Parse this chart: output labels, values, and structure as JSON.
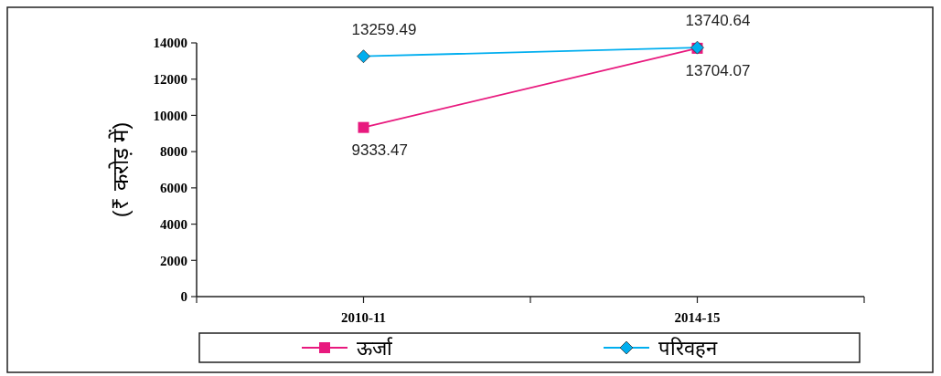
{
  "chart_data": {
    "type": "line",
    "categories": [
      "2010-11",
      "2014-15"
    ],
    "ylabel": "(₹ करोड़ में)",
    "ylim": [
      0,
      14000
    ],
    "yticks": [
      0,
      2000,
      4000,
      6000,
      8000,
      10000,
      12000,
      14000
    ],
    "grid": false,
    "legend": "bottom",
    "data_labels": true,
    "series": [
      {
        "name": "ऊर्जा",
        "color": "#e8197e",
        "marker": "square",
        "values": [
          9333.47,
          13704.07
        ]
      },
      {
        "name": "परिवहन",
        "color": "#00aeef",
        "marker": "diamond",
        "values": [
          13259.49,
          13740.64
        ]
      }
    ]
  }
}
